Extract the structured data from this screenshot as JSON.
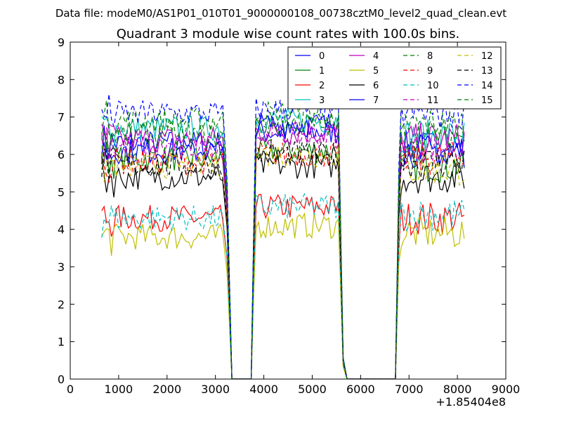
{
  "suptitle": "Data file: modeM0/AS1P01_010T01_9000000108_00738cztM0_level2_quad_clean.evt",
  "chart_data": {
    "type": "line",
    "title": "Quadrant 3 module wise count rates with 100.0s bins.",
    "xlabel": "",
    "ylabel": "",
    "x_offset_label": "+1.85404e8",
    "xlim": [
      0,
      9000
    ],
    "ylim": [
      0,
      9
    ],
    "xticks": [
      0,
      1000,
      2000,
      3000,
      4000,
      5000,
      6000,
      7000,
      8000,
      9000
    ],
    "yticks": [
      0,
      1,
      2,
      3,
      4,
      5,
      6,
      7,
      8,
      9
    ],
    "grid": false,
    "legend_position": "top-right",
    "segments": [
      {
        "x_start": 650,
        "x_end": 3150,
        "ramp_down_to": 3340
      },
      {
        "flat_zero": [
          3340,
          3740
        ]
      },
      {
        "x_start": 3840,
        "x_end": 5560,
        "ramp_down_to": 5720
      },
      {
        "flat_zero": [
          5720,
          6720
        ]
      },
      {
        "x_start": 6840,
        "x_end": 8150
      }
    ],
    "series": [
      {
        "name": "0",
        "color": "#0000ff",
        "dashed": false,
        "levels": [
          6.3,
          6.6,
          6.2
        ]
      },
      {
        "name": "1",
        "color": "#008000",
        "dashed": false,
        "levels": [
          5.9,
          6.1,
          5.7
        ]
      },
      {
        "name": "2",
        "color": "#ff0000",
        "dashed": false,
        "levels": [
          4.3,
          4.6,
          4.3
        ]
      },
      {
        "name": "3",
        "color": "#00bfbf",
        "dashed": false,
        "levels": [
          6.7,
          6.9,
          6.5
        ]
      },
      {
        "name": "4",
        "color": "#bf00bf",
        "dashed": false,
        "levels": [
          6.4,
          6.6,
          6.4
        ]
      },
      {
        "name": "5",
        "color": "#bfbf00",
        "dashed": false,
        "levels": [
          3.8,
          4.1,
          3.9
        ]
      },
      {
        "name": "6",
        "color": "#000000",
        "dashed": false,
        "levels": [
          5.4,
          5.7,
          5.4
        ]
      },
      {
        "name": "7",
        "color": "#0000ff",
        "dashed": false,
        "levels": [
          6.1,
          6.8,
          6.1
        ]
      },
      {
        "name": "8",
        "color": "#008000",
        "dashed": true,
        "levels": [
          6.9,
          7.1,
          6.8
        ]
      },
      {
        "name": "9",
        "color": "#ff0000",
        "dashed": true,
        "levels": [
          5.8,
          6.0,
          5.9
        ]
      },
      {
        "name": "10",
        "color": "#00bfbf",
        "dashed": true,
        "levels": [
          4.3,
          4.6,
          4.4
        ]
      },
      {
        "name": "11",
        "color": "#bf00bf",
        "dashed": true,
        "levels": [
          6.2,
          6.5,
          6.2
        ]
      },
      {
        "name": "12",
        "color": "#bfbf00",
        "dashed": true,
        "levels": [
          5.7,
          6.0,
          5.6
        ]
      },
      {
        "name": "13",
        "color": "#000000",
        "dashed": true,
        "levels": [
          5.7,
          6.0,
          5.8
        ]
      },
      {
        "name": "14",
        "color": "#0000ff",
        "dashed": true,
        "levels": [
          7.1,
          7.2,
          7.1
        ]
      },
      {
        "name": "15",
        "color": "#008000",
        "dashed": true,
        "levels": [
          6.5,
          6.8,
          6.5
        ]
      }
    ]
  }
}
